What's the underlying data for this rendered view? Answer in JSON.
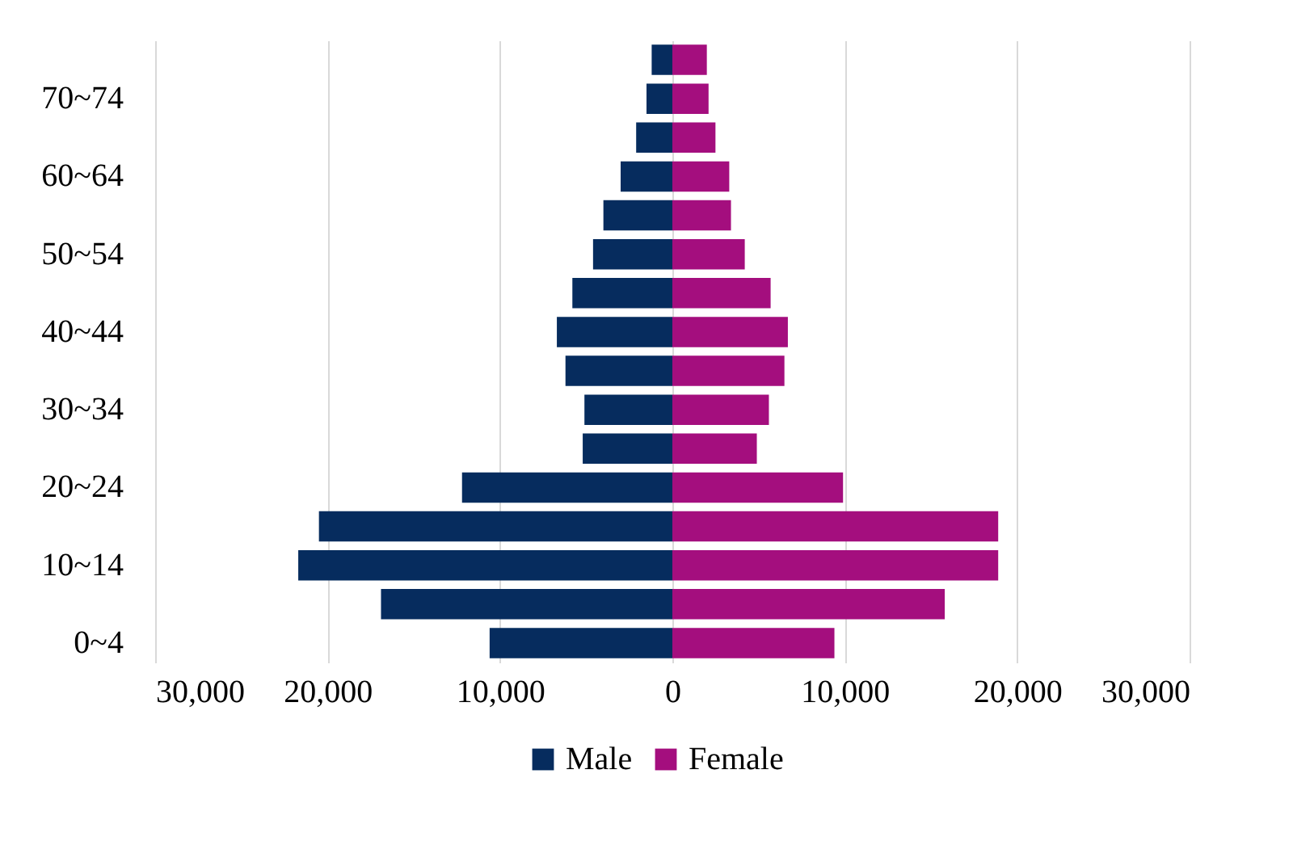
{
  "chart_data": {
    "type": "bar",
    "orientation": "horizontal",
    "stacked": true,
    "categories": [
      null,
      "70~74",
      null,
      "60~64",
      null,
      "50~54",
      null,
      "40~44",
      null,
      "30~34",
      null,
      "20~24",
      null,
      "10~14",
      null,
      "0~4"
    ],
    "series": [
      {
        "name": "Male",
        "color": "#062c5e",
        "values": [
          -1200,
          -1500,
          -2100,
          -3000,
          -4000,
          -4600,
          -5800,
          -6700,
          -6200,
          -5100,
          -5200,
          -12200,
          -20500,
          -21700,
          -16900,
          -10600
        ]
      },
      {
        "name": "Female",
        "color": "#a40e7e",
        "values": [
          2000,
          2100,
          2500,
          3300,
          3400,
          4200,
          5700,
          6700,
          6500,
          5600,
          4900,
          9900,
          18900,
          18900,
          15800,
          9400
        ]
      }
    ],
    "xlim": [
      -30000,
      30000
    ],
    "xticks": [
      {
        "value": -30000,
        "label": "30,000"
      },
      {
        "value": -20000,
        "label": "20,000"
      },
      {
        "value": -10000,
        "label": "10,000"
      },
      0,
      {
        "value": 10000,
        "label": "10,000"
      },
      {
        "value": 20000,
        "label": "20,000"
      },
      {
        "value": 30000,
        "label": "30,000"
      }
    ],
    "grid": "x",
    "legend": "bottom"
  }
}
